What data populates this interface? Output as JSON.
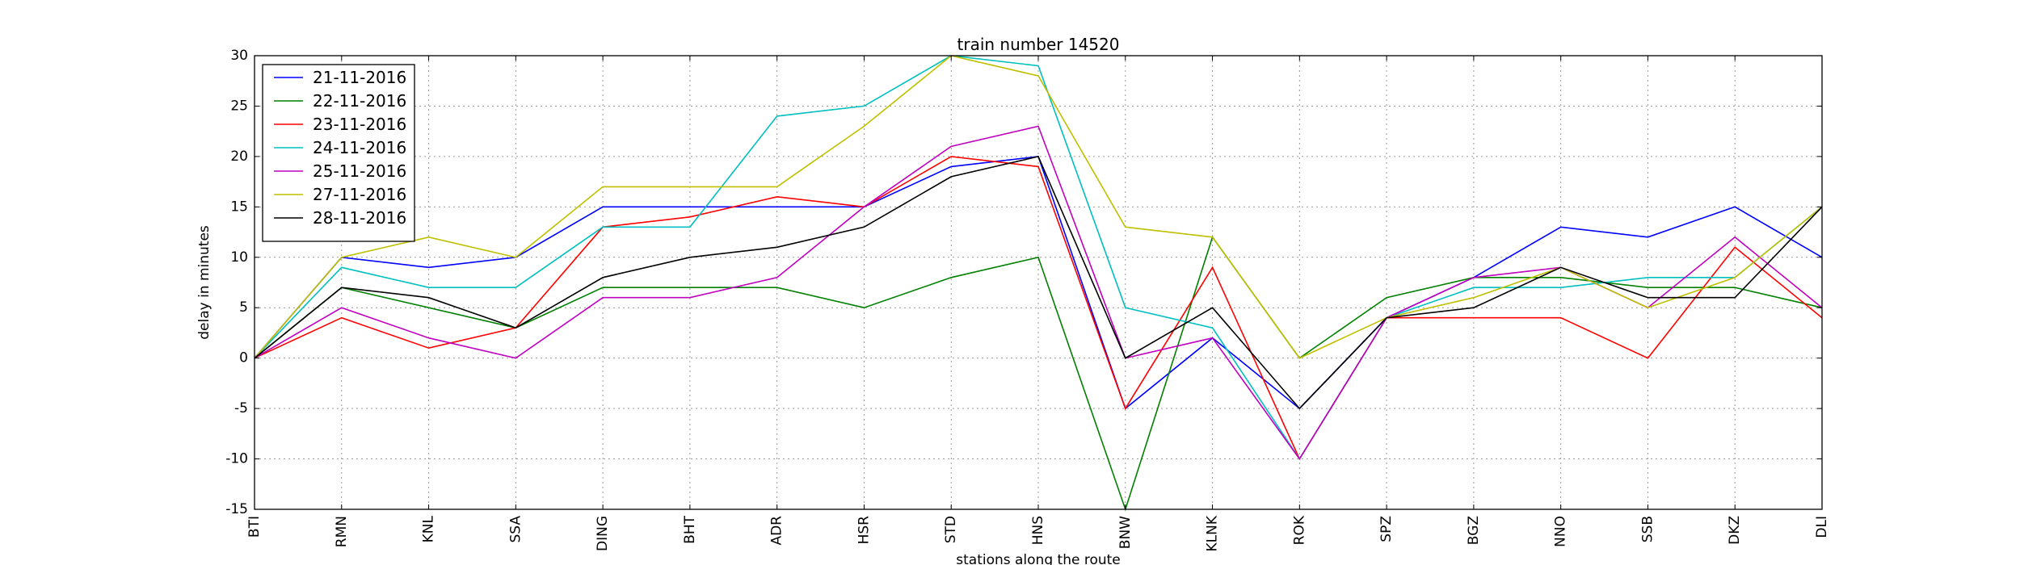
{
  "chart_data": {
    "type": "line",
    "title": "train number 14520",
    "xlabel": "stations along the route",
    "ylabel": "delay in minutes",
    "categories": [
      "BTI",
      "RMN",
      "KNL",
      "SSA",
      "DING",
      "BHT",
      "ADR",
      "HSR",
      "STD",
      "HNS",
      "BNW",
      "KLNK",
      "ROK",
      "SPZ",
      "BGZ",
      "NNO",
      "SSB",
      "DKZ",
      "DLI"
    ],
    "ylim": [
      -15,
      30
    ],
    "yticks": [
      -15,
      -10,
      -5,
      0,
      5,
      10,
      15,
      20,
      25,
      30
    ],
    "grid": true,
    "legend_position": "top-left",
    "series": [
      {
        "name": "21-11-2016",
        "color": "#0000ff",
        "values": [
          0,
          10,
          9,
          10,
          15,
          15,
          15,
          15,
          19,
          20,
          -5,
          2,
          -5,
          4,
          8,
          13,
          12,
          15,
          10
        ]
      },
      {
        "name": "22-11-2016",
        "color": "#008000",
        "values": [
          0,
          7,
          5,
          3,
          7,
          7,
          7,
          5,
          8,
          10,
          -15,
          12,
          0,
          6,
          8,
          8,
          7,
          7,
          5
        ]
      },
      {
        "name": "23-11-2016",
        "color": "#ff0000",
        "values": [
          0,
          4,
          1,
          3,
          13,
          14,
          16,
          15,
          20,
          19,
          -5,
          9,
          -10,
          4,
          4,
          4,
          0,
          11,
          4
        ]
      },
      {
        "name": "24-11-2016",
        "color": "#00bfbf",
        "values": [
          0,
          9,
          7,
          7,
          13,
          13,
          24,
          25,
          30,
          29,
          5,
          3,
          -10,
          4,
          7,
          7,
          8,
          8,
          15
        ]
      },
      {
        "name": "25-11-2016",
        "color": "#bf00bf",
        "values": [
          0,
          5,
          2,
          0,
          6,
          6,
          8,
          15,
          21,
          23,
          0,
          2,
          -10,
          4,
          8,
          9,
          5,
          12,
          5
        ]
      },
      {
        "name": "27-11-2016",
        "color": "#bfbf00",
        "values": [
          0,
          10,
          12,
          10,
          17,
          17,
          17,
          23,
          30,
          28,
          13,
          12,
          0,
          4,
          6,
          9,
          5,
          8,
          15
        ]
      },
      {
        "name": "28-11-2016",
        "color": "#000000",
        "values": [
          0,
          7,
          6,
          3,
          8,
          10,
          11,
          13,
          18,
          20,
          0,
          5,
          -5,
          4,
          5,
          9,
          6,
          6,
          15
        ]
      }
    ]
  }
}
